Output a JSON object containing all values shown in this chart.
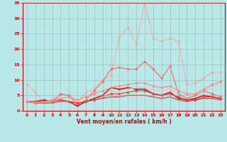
{
  "bg_color": "#b8e8e8",
  "grid_color": "#999999",
  "xlabel": "Vent moyen/en rafales ( km/h )",
  "xlabel_color": "#cc0000",
  "tick_color": "#cc0000",
  "xlim": [
    -0.5,
    23.5
  ],
  "ylim": [
    0,
    35
  ],
  "yticks": [
    0,
    5,
    10,
    15,
    20,
    25,
    30,
    35
  ],
  "xticks": [
    0,
    1,
    2,
    3,
    4,
    5,
    6,
    7,
    8,
    9,
    10,
    11,
    12,
    13,
    14,
    15,
    16,
    17,
    18,
    19,
    20,
    21,
    22,
    23
  ],
  "series": [
    {
      "color": "#ffaaaa",
      "alpha": 1.0,
      "lw": 0.8,
      "marker": "o",
      "ms": 1.8,
      "values": [
        8.5,
        6.0,
        2.5,
        3.5,
        5.0,
        5.0,
        2.5,
        6.0,
        7.0,
        10.0,
        11.5,
        24.0,
        27.0,
        21.5,
        35.0,
        23.5,
        22.5,
        23.5,
        22.5,
        8.5,
        9.0,
        10.5,
        12.5,
        12.5
      ]
    },
    {
      "color": "#ff6666",
      "alpha": 1.0,
      "lw": 0.8,
      "marker": "o",
      "ms": 1.8,
      "values": [
        3.0,
        2.5,
        3.5,
        3.0,
        5.5,
        5.0,
        2.0,
        3.5,
        6.5,
        9.5,
        13.5,
        14.0,
        13.5,
        13.5,
        16.0,
        13.5,
        10.5,
        14.5,
        5.5,
        4.0,
        5.0,
        6.5,
        5.5,
        4.5
      ]
    },
    {
      "color": "#cc0000",
      "alpha": 1.0,
      "lw": 1.0,
      "marker": "+",
      "ms": 3.0,
      "values": [
        3.0,
        3.0,
        3.5,
        3.0,
        3.5,
        3.0,
        1.5,
        3.0,
        4.0,
        5.0,
        7.5,
        7.0,
        7.5,
        7.0,
        7.0,
        5.5,
        5.0,
        6.0,
        4.0,
        3.5,
        4.0,
        5.0,
        4.5,
        4.0
      ]
    },
    {
      "color": "#ff3333",
      "alpha": 1.0,
      "lw": 0.8,
      "marker": "o",
      "ms": 1.8,
      "values": [
        3.0,
        2.5,
        3.0,
        3.0,
        3.5,
        3.0,
        2.5,
        3.0,
        3.5,
        4.5,
        5.5,
        5.5,
        6.0,
        6.5,
        6.5,
        5.5,
        5.0,
        5.5,
        4.5,
        3.5,
        3.5,
        4.5,
        4.5,
        4.0
      ]
    },
    {
      "color": "#ffbbbb",
      "alpha": 1.0,
      "lw": 0.8,
      "marker": null,
      "ms": 0,
      "values": [
        3.0,
        2.8,
        3.0,
        3.0,
        3.0,
        3.2,
        2.8,
        3.0,
        3.5,
        4.5,
        6.0,
        6.5,
        7.0,
        7.5,
        7.5,
        7.0,
        6.5,
        7.0,
        5.5,
        5.0,
        5.5,
        6.5,
        8.0,
        9.0
      ]
    },
    {
      "color": "#dd3333",
      "alpha": 1.0,
      "lw": 0.8,
      "marker": null,
      "ms": 0,
      "values": [
        3.0,
        2.5,
        2.5,
        2.5,
        3.0,
        3.0,
        2.5,
        3.0,
        3.5,
        4.0,
        4.5,
        4.5,
        5.0,
        5.0,
        5.0,
        4.5,
        4.0,
        4.5,
        3.5,
        3.0,
        3.5,
        4.0,
        4.0,
        3.5
      ]
    },
    {
      "color": "#ff8888",
      "alpha": 1.0,
      "lw": 0.8,
      "marker": "o",
      "ms": 1.8,
      "values": [
        3.0,
        2.5,
        3.0,
        3.5,
        4.0,
        4.5,
        3.5,
        4.5,
        5.5,
        6.5,
        7.5,
        8.0,
        8.5,
        9.0,
        9.0,
        8.0,
        7.5,
        8.0,
        6.5,
        5.5,
        5.5,
        7.0,
        8.5,
        9.5
      ]
    }
  ]
}
